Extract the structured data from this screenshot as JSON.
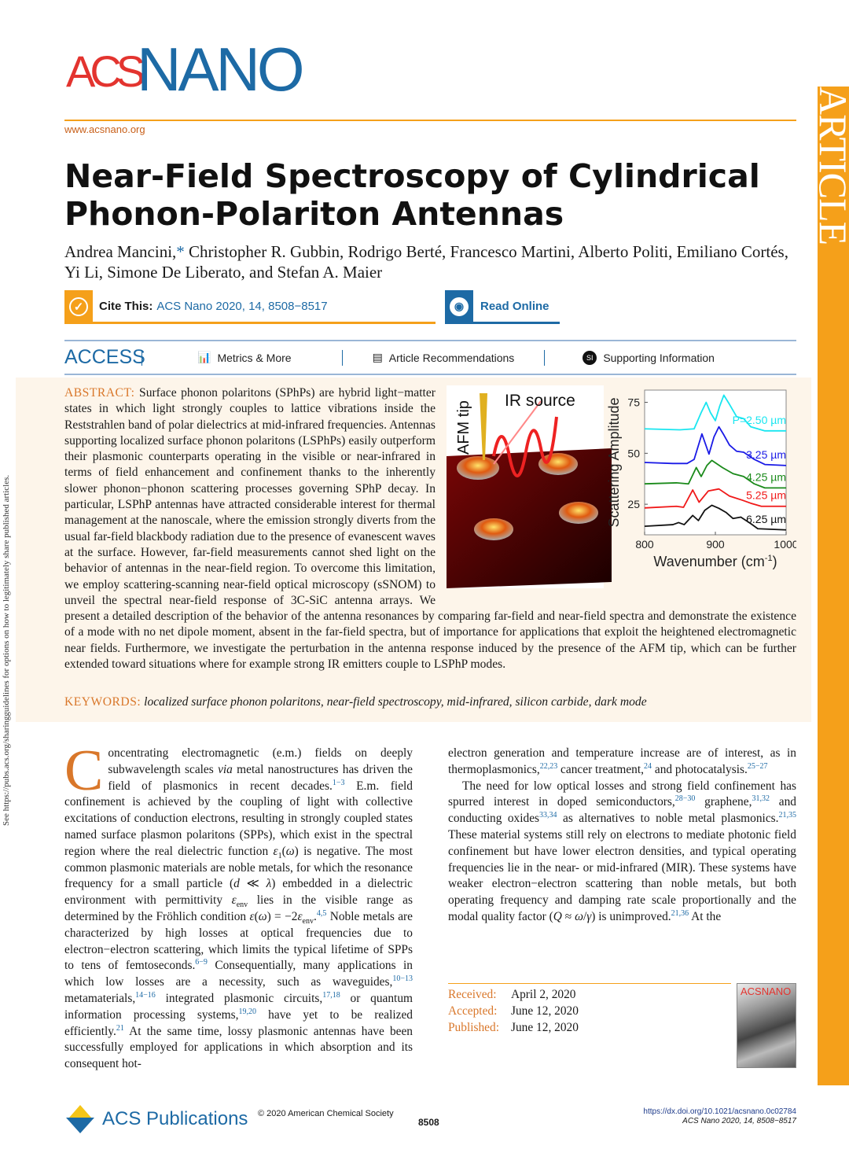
{
  "journal": {
    "logo_text_a": "ACS",
    "logo_text_b": "NANO",
    "site": "www.acsnano.org",
    "section_label": "ARTICLE"
  },
  "share_note": "See https://pubs.acs.org/sharingguidelines for options on how to legitimately share published articles.",
  "article": {
    "title": "Near-Field Spectroscopy of Cylindrical Phonon-Polariton Antennas",
    "authors_a": "Andrea Mancini,",
    "authors_star": "*",
    "authors_b": " Christopher R. Gubbin, Rodrigo Berté, Francesco Martini, Alberto Politi, Emiliano Cortés, Yi Li, Simone De Liberato, and Stefan A. Maier"
  },
  "cite": {
    "label": "Cite This:",
    "ref": "ACS Nano 2020, 14, 8508−8517",
    "read_online": "Read Online"
  },
  "access_bar": {
    "access": "ACCESS",
    "metrics": "Metrics & More",
    "recommendations": "Article Recommendations",
    "supporting": "Supporting Information",
    "si_badge": "SI"
  },
  "abstract": {
    "label": "ABSTRACT:",
    "text": "Surface phonon polaritons (SPhPs) are hybrid light−matter states in which light strongly couples to lattice vibrations inside the Reststrahlen band of polar dielectrics at mid-infrared frequencies. Antennas supporting localized surface phonon polaritons (LSPhPs) easily outperform their plasmonic counterparts operating in the visible or near-infrared in terms of field enhancement and confinement thanks to the inherently slower phonon−phonon scattering processes governing SPhP decay. In particular, LSPhP antennas have attracted considerable interest for thermal management at the nanoscale, where the emission strongly diverts from the usual far-field blackbody radiation due to the presence of evanescent waves at the surface. However, far-field measurements cannot shed light on the behavior of antennas in the near-field region. To overcome this limitation, we employ scattering-scanning near-field optical microscopy (sSNOM) to unveil the spectral near-field response of 3C-SiC antenna arrays. We present a detailed description of the behavior of the antenna resonances by comparing far-field and near-field spectra and demonstrate the existence of a mode with no net dipole moment, absent in the far-field spectra, but of importance for applications that exploit the heightened electromagnetic near fields. Furthermore, we investigate the perturbation in the antenna response induced by the presence of the AFM tip, which can be further extended toward situations where for example strong IR emitters couple to LSPhP modes."
  },
  "toc_figure": {
    "afm_label": "AFM tip",
    "ir_label": "IR source"
  },
  "chart_data": {
    "type": "line",
    "xlabel": "Wavenumber (cm",
    "xlabel_sup": "-1",
    "xlabel_end": ")",
    "ylabel": "Scattering Amplitude",
    "xlim": [
      800,
      1000
    ],
    "ylim": [
      10,
      81
    ],
    "xticks": [
      800,
      900,
      1000
    ],
    "yticks": [
      25,
      50,
      75
    ],
    "grid": false,
    "series": [
      {
        "name": "P=2.50 µm",
        "color": "#19e6f0",
        "points": [
          [
            800,
            62
          ],
          [
            850,
            61.5
          ],
          [
            870,
            62
          ],
          [
            880,
            70
          ],
          [
            887,
            75
          ],
          [
            893,
            70
          ],
          [
            900,
            66
          ],
          [
            906,
            73
          ],
          [
            912,
            78.5
          ],
          [
            920,
            74
          ],
          [
            930,
            68
          ],
          [
            940,
            67
          ],
          [
            950,
            63
          ],
          [
            970,
            61
          ],
          [
            1000,
            61
          ]
        ]
      },
      {
        "name": "3.25 µm",
        "color": "#1a1ae6",
        "points": [
          [
            800,
            45.5
          ],
          [
            840,
            45
          ],
          [
            860,
            45
          ],
          [
            870,
            47
          ],
          [
            881,
            59.5
          ],
          [
            891,
            49.6
          ],
          [
            898,
            58
          ],
          [
            905,
            63
          ],
          [
            912,
            59
          ],
          [
            920,
            54
          ],
          [
            930,
            51
          ],
          [
            940,
            50.5
          ],
          [
            955,
            47
          ],
          [
            970,
            44.5
          ],
          [
            1000,
            44
          ]
        ]
      },
      {
        "name": "4.25 µm",
        "color": "#1a8a1a",
        "points": [
          [
            800,
            35
          ],
          [
            845,
            35.5
          ],
          [
            862,
            35
          ],
          [
            873,
            43
          ],
          [
            880,
            38.6
          ],
          [
            888,
            44
          ],
          [
            895,
            46.5
          ],
          [
            910,
            43
          ],
          [
            925,
            40
          ],
          [
            940,
            38.6
          ],
          [
            955,
            35
          ],
          [
            970,
            33
          ],
          [
            1000,
            33
          ]
        ]
      },
      {
        "name": "5.25 µm",
        "color": "#f01818",
        "points": [
          [
            800,
            23.2
          ],
          [
            845,
            24
          ],
          [
            855,
            23.5
          ],
          [
            868,
            32
          ],
          [
            877,
            26
          ],
          [
            890,
            31.5
          ],
          [
            905,
            32.5
          ],
          [
            920,
            29
          ],
          [
            938,
            27
          ],
          [
            950,
            25.5
          ],
          [
            965,
            24
          ],
          [
            1000,
            24
          ]
        ]
      },
      {
        "name": "6.25 µm",
        "color": "#111111",
        "points": [
          [
            800,
            14.2
          ],
          [
            840,
            15
          ],
          [
            848,
            16
          ],
          [
            856,
            15
          ],
          [
            868,
            19.5
          ],
          [
            876,
            17
          ],
          [
            885,
            22
          ],
          [
            895,
            24.5
          ],
          [
            905,
            23
          ],
          [
            915,
            21
          ],
          [
            925,
            18
          ],
          [
            936,
            18.7
          ],
          [
            950,
            15.5
          ],
          [
            960,
            13
          ],
          [
            1000,
            12.4
          ]
        ]
      }
    ]
  },
  "keywords": {
    "label": "KEYWORDS:",
    "text": "localized surface phonon polaritons, near-field spectroscopy, mid-infrared, silicon carbide, dark mode"
  },
  "body": {
    "drop_cap": "C",
    "left": [
      [
        {
          "t": "oncentrating electromagnetic (e.m.) fields on deeply subwavelength scales "
        },
        {
          "i": "via"
        },
        {
          "t": " metal nanostructures has driven the field of plasmonics in recent decades."
        },
        {
          "sup": "1−3"
        },
        {
          "t": " E.m. field confinement is achieved by the coupling of light with collective excitations of conduction electrons, resulting in strongly coupled states named surface plasmon polaritons (SPPs), which exist in the spectral region where the real dielectric function "
        },
        {
          "i": "ε"
        },
        {
          "sub": "1"
        },
        {
          "t": "("
        },
        {
          "i": "ω"
        },
        {
          "t": ") is negative. The most common plasmonic materials are noble metals, for which the resonance frequency for a small particle ("
        },
        {
          "i": "d"
        },
        {
          "t": " ≪ "
        },
        {
          "i": "λ"
        },
        {
          "t": ") embedded in a dielectric environment with permittivity "
        },
        {
          "i": "ε"
        },
        {
          "sub": "env"
        },
        {
          "t": " lies in the visible range as determined by the Fröhlich condition "
        },
        {
          "i": "ε"
        },
        {
          "t": "("
        },
        {
          "i": "ω"
        },
        {
          "t": ") = −2"
        },
        {
          "i": "ε"
        },
        {
          "sub": "env"
        },
        {
          "t": "."
        },
        {
          "sup": "4,5"
        },
        {
          "t": " Noble metals are characterized by high losses at optical frequencies due to electron−electron scattering, which limits the typical lifetime of SPPs to tens of femtoseconds."
        },
        {
          "sup": "6−9"
        },
        {
          "t": " Consequentially, many applications in which low losses are a necessity, such as waveguides,"
        },
        {
          "sup": "10−13"
        },
        {
          "t": " metamaterials,"
        },
        {
          "sup": "14−16"
        },
        {
          "t": " integrated plasmonic circuits,"
        },
        {
          "sup": "17,18"
        },
        {
          "t": " or quantum information processing systems,"
        },
        {
          "sup": "19,20"
        },
        {
          "t": " have yet to be realized efficiently."
        },
        {
          "sup": "21"
        },
        {
          "t": " At the same time, lossy plasmonic antennas have been successfully employed for applications in which absorption and its consequent hot-"
        }
      ]
    ],
    "right": [
      [
        {
          "t": "electron generation and temperature increase are of interest, as in thermoplasmonics,"
        },
        {
          "sup": "22,23"
        },
        {
          "t": " cancer treatment,"
        },
        {
          "sup": "24"
        },
        {
          "t": " and photocatalysis."
        },
        {
          "sup": "25−27"
        }
      ],
      [
        {
          "t": "The need for low optical losses and strong field confinement has spurred interest in doped semiconductors,"
        },
        {
          "sup": "28−30"
        },
        {
          "t": " graphene,"
        },
        {
          "sup": "31,32"
        },
        {
          "t": " and conducting oxides"
        },
        {
          "sup": "33,34"
        },
        {
          "t": " as alternatives to noble metal plasmonics."
        },
        {
          "sup": "21,35"
        },
        {
          "t": " These material systems still rely on electrons to mediate photonic field confinement but have lower electron densities, and typical operating frequencies lie in the near- or mid-infrared (MIR). These systems have weaker electron−electron scattering than noble metals, but both operating frequency and damping rate scale proportionally and the modal quality factor ("
        },
        {
          "i": "Q"
        },
        {
          "t": " ≈ "
        },
        {
          "i": "ω"
        },
        {
          "t": "/"
        },
        {
          "i": "γ"
        },
        {
          "t": ") is unimproved."
        },
        {
          "sup": "21,36"
        },
        {
          "t": " At the"
        }
      ]
    ]
  },
  "dates": [
    {
      "label": "Received:",
      "value": "April 2, 2020"
    },
    {
      "label": "Accepted:",
      "value": "June 12, 2020"
    },
    {
      "label": "Published:",
      "value": "June 12, 2020"
    }
  ],
  "cover_text": "ACSNANO",
  "footer": {
    "publisher": "ACS Publications",
    "copyright": "© 2020 American Chemical Society",
    "page": "8508",
    "doi": "https://dx.doi.org/10.1021/acsnano.0c02784",
    "citation": "ACS Nano 2020, 14, 8508−8517"
  }
}
